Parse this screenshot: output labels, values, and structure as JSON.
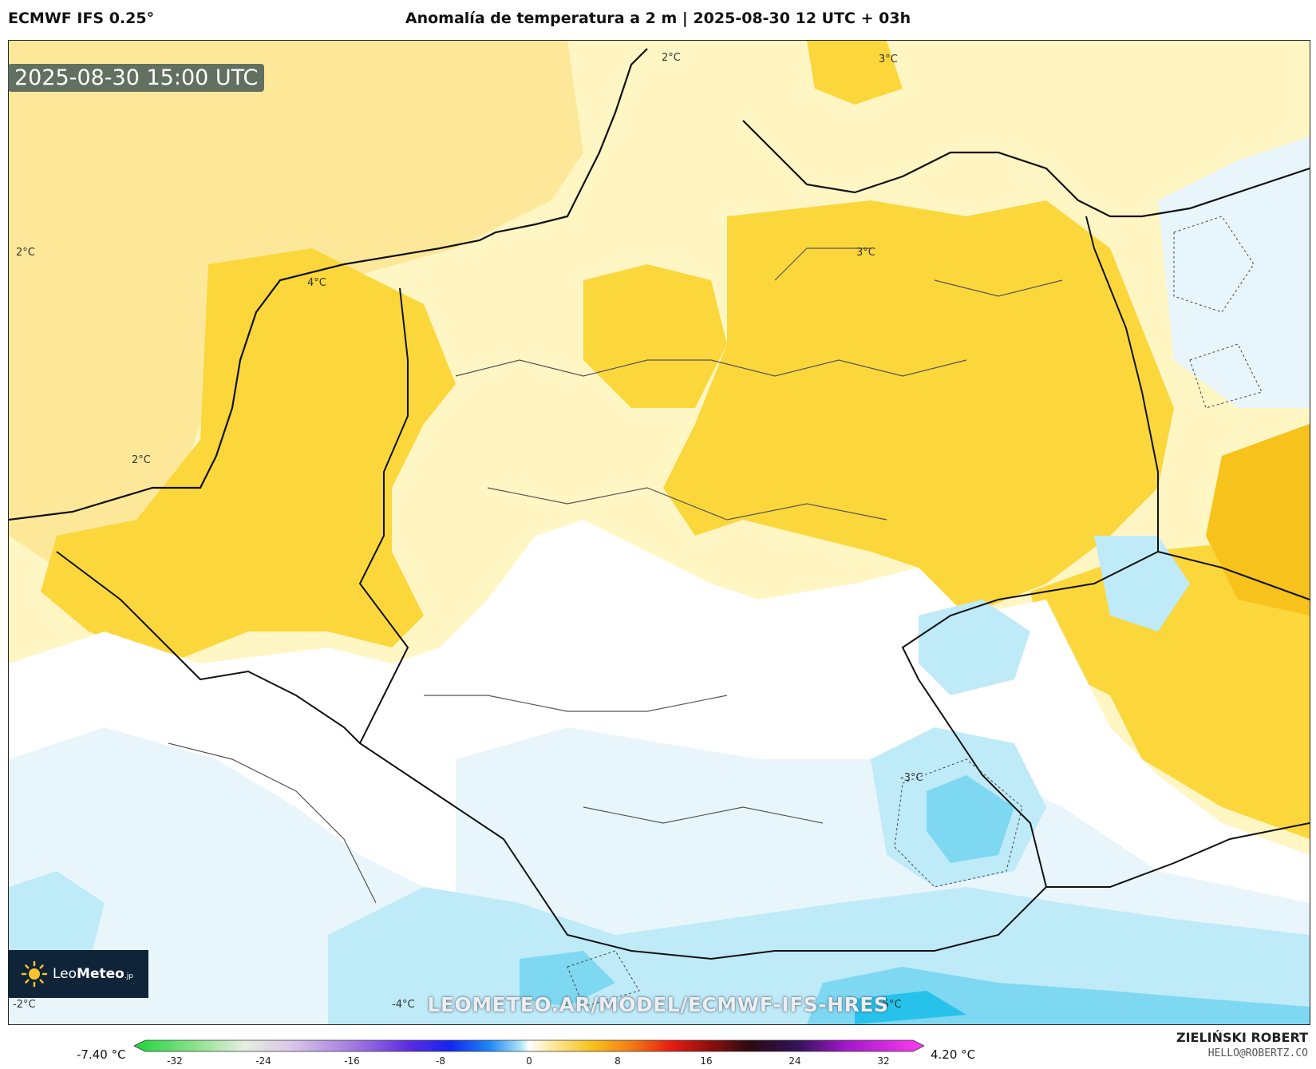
{
  "header": {
    "model": "ECMWF IFS 0.25°",
    "title": "Anomalía de temperatura a 2 m | 2025-08-30 12 UTC + 03h"
  },
  "map": {
    "valid_time": "2025-08-30 15:00 UTC",
    "contour_labels": [
      {
        "text": "2°C"
      },
      {
        "text": "3°C"
      },
      {
        "text": "2°C"
      },
      {
        "text": "4°C"
      },
      {
        "text": "3°C"
      },
      {
        "text": "2°C"
      },
      {
        "text": "-3°C"
      },
      {
        "text": "-2°C"
      },
      {
        "text": "-4°C"
      },
      {
        "text": "-5°C"
      }
    ],
    "watermark": "LEOMETEO.AR/MODEL/ECMWF-IFS-HRES",
    "colors": {
      "warm_light": "#fff6c4",
      "warm": "#fde89a",
      "warm_strong": "#fbd73c",
      "warm_orange": "#f7c21c",
      "neutral": "#ffffff",
      "cool_light": "#e8f6fc",
      "cool": "#bfeaf8",
      "cool_strong": "#7fd8f2",
      "cool_deep": "#26c2ec"
    }
  },
  "logo": {
    "brand_light": "Leo",
    "brand_bold": "Meteo",
    "suffix": ".jp"
  },
  "legend": {
    "min_label": "-7.40 °C",
    "max_label": "4.20 °C",
    "ticks": [
      "-32",
      "-24",
      "-16",
      "-8",
      "0",
      "8",
      "16",
      "24",
      "32"
    ]
  },
  "credit": {
    "name": "ZIELIŃSKI ROBERT",
    "email": "HELLO@ROBERTZ.CO"
  }
}
